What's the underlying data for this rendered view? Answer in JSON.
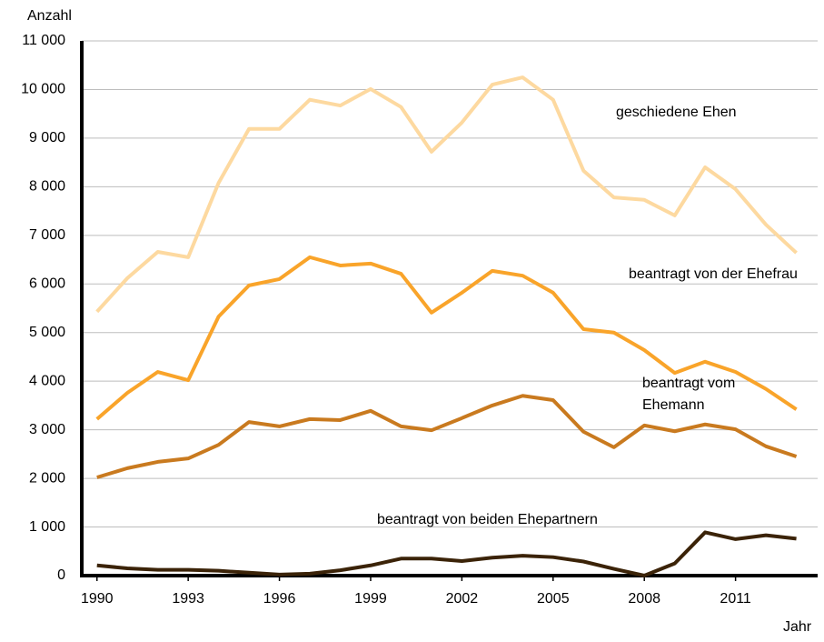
{
  "chart_data": {
    "type": "line",
    "y_label": "Anzahl",
    "x_label": "Jahr",
    "x": [
      1990,
      1991,
      1992,
      1993,
      1994,
      1995,
      1996,
      1997,
      1998,
      1999,
      2000,
      2001,
      2002,
      2003,
      2004,
      2005,
      2006,
      2007,
      2008,
      2009,
      2010,
      2011,
      2012,
      2013
    ],
    "series": [
      {
        "name": "geschiedene Ehen",
        "color": "#fdd9a0",
        "values": [
          5430,
          6120,
          6660,
          6550,
          8080,
          9190,
          9190,
          9790,
          9670,
          10010,
          9640,
          8720,
          9320,
          10100,
          10250,
          9790,
          8330,
          7780,
          7730,
          7410,
          8400,
          7950,
          7220,
          6640
        ]
      },
      {
        "name": "beantragt von der Ehefrau",
        "color": "#f9a42a",
        "values": [
          3220,
          3760,
          4190,
          4020,
          5330,
          5970,
          6100,
          6550,
          6380,
          6420,
          6210,
          5410,
          5820,
          6270,
          6170,
          5820,
          5070,
          5000,
          4640,
          4170,
          4400,
          4190,
          3840,
          3420
        ]
      },
      {
        "name": "beantragt vom Ehemann",
        "color": "#c97a1f",
        "values": [
          2020,
          2210,
          2340,
          2410,
          2690,
          3160,
          3070,
          3220,
          3200,
          3390,
          3070,
          2990,
          3240,
          3500,
          3700,
          3610,
          2960,
          2640,
          3090,
          2970,
          3110,
          3010,
          2660,
          2450
        ]
      },
      {
        "name": "beantragt von beiden Ehepartnern",
        "color": "#3b2308",
        "values": [
          210,
          150,
          120,
          120,
          100,
          60,
          20,
          40,
          110,
          210,
          350,
          350,
          300,
          370,
          410,
          380,
          290,
          140,
          0,
          250,
          890,
          750,
          830,
          760
        ]
      }
    ],
    "xlim": [
      1989.5,
      2013.7
    ],
    "xticks": [
      1990,
      1993,
      1996,
      1999,
      2002,
      2005,
      2008,
      2011
    ],
    "ylim": [
      0,
      11000
    ],
    "yticks": [
      0,
      {
        "value": 1000,
        "label": "1 000"
      },
      {
        "value": 2000,
        "label": "2 000"
      },
      {
        "value": 3000,
        "label": "3 000"
      },
      {
        "value": 4000,
        "label": "4 000"
      },
      {
        "value": 5000,
        "label": "5 000"
      },
      {
        "value": 6000,
        "label": "6 000"
      },
      {
        "value": 7000,
        "label": "7 000"
      },
      {
        "value": 8000,
        "label": "8 000"
      },
      {
        "value": 9000,
        "label": "9 000"
      },
      {
        "value": 10000,
        "label": "10 000"
      },
      {
        "value": 11000,
        "label": "11 000"
      }
    ],
    "grid": true
  }
}
